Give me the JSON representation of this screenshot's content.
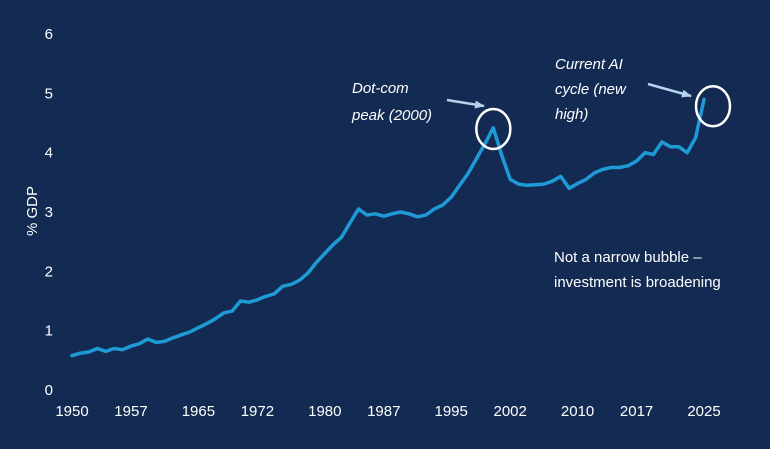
{
  "chart_data": {
    "type": "line",
    "title": "",
    "xlabel": "",
    "ylabel": "% GDP",
    "xlim": [
      1950,
      2028
    ],
    "ylim": [
      0,
      6
    ],
    "grid": false,
    "legend": "none",
    "x_ticks": [
      "1950",
      "1957",
      "1965",
      "1972",
      "1980",
      "1987",
      "1995",
      "2002",
      "2010",
      "2017",
      "2025"
    ],
    "y_ticks": [
      "0",
      "1",
      "2",
      "3",
      "4",
      "5",
      "6"
    ],
    "series": [
      {
        "color": "#1e9bd7",
        "points": [
          [
            1950,
            0.58
          ],
          [
            1951,
            0.62
          ],
          [
            1952,
            0.64
          ],
          [
            1953,
            0.7
          ],
          [
            1954,
            0.65
          ],
          [
            1955,
            0.7
          ],
          [
            1956,
            0.68
          ],
          [
            1957,
            0.74
          ],
          [
            1958,
            0.78
          ],
          [
            1959,
            0.86
          ],
          [
            1960,
            0.8
          ],
          [
            1961,
            0.82
          ],
          [
            1962,
            0.88
          ],
          [
            1963,
            0.93
          ],
          [
            1964,
            0.98
          ],
          [
            1965,
            1.05
          ],
          [
            1966,
            1.12
          ],
          [
            1967,
            1.2
          ],
          [
            1968,
            1.3
          ],
          [
            1969,
            1.33
          ],
          [
            1970,
            1.5
          ],
          [
            1971,
            1.48
          ],
          [
            1972,
            1.52
          ],
          [
            1973,
            1.58
          ],
          [
            1974,
            1.62
          ],
          [
            1975,
            1.75
          ],
          [
            1976,
            1.78
          ],
          [
            1977,
            1.85
          ],
          [
            1978,
            1.97
          ],
          [
            1979,
            2.15
          ],
          [
            1980,
            2.3
          ],
          [
            1981,
            2.45
          ],
          [
            1982,
            2.58
          ],
          [
            1983,
            2.82
          ],
          [
            1984,
            3.05
          ],
          [
            1985,
            2.95
          ],
          [
            1986,
            2.97
          ],
          [
            1987,
            2.93
          ],
          [
            1988,
            2.97
          ],
          [
            1989,
            3.0
          ],
          [
            1990,
            2.97
          ],
          [
            1991,
            2.92
          ],
          [
            1992,
            2.95
          ],
          [
            1993,
            3.05
          ],
          [
            1994,
            3.12
          ],
          [
            1995,
            3.25
          ],
          [
            1996,
            3.45
          ],
          [
            1997,
            3.65
          ],
          [
            1998,
            3.9
          ],
          [
            1999,
            4.15
          ],
          [
            2000,
            4.42
          ],
          [
            2001,
            3.95
          ],
          [
            2002,
            3.55
          ],
          [
            2003,
            3.47
          ],
          [
            2004,
            3.45
          ],
          [
            2005,
            3.46
          ],
          [
            2006,
            3.47
          ],
          [
            2007,
            3.52
          ],
          [
            2008,
            3.6
          ],
          [
            2009,
            3.4
          ],
          [
            2010,
            3.48
          ],
          [
            2011,
            3.55
          ],
          [
            2012,
            3.66
          ],
          [
            2013,
            3.72
          ],
          [
            2014,
            3.75
          ],
          [
            2015,
            3.75
          ],
          [
            2016,
            3.78
          ],
          [
            2017,
            3.86
          ],
          [
            2018,
            4.0
          ],
          [
            2019,
            3.97
          ],
          [
            2020,
            4.18
          ],
          [
            2021,
            4.1
          ],
          [
            2022,
            4.1
          ],
          [
            2023,
            4.0
          ],
          [
            2024,
            4.25
          ],
          [
            2025,
            4.9
          ]
        ]
      }
    ],
    "annotations": [
      {
        "text_lines": [
          "Dot-com",
          "peak (2000)"
        ],
        "target": [
          2000,
          4.4
        ]
      },
      {
        "text_lines": [
          "Current AI",
          "cycle (new",
          "high)"
        ],
        "target": [
          2025,
          4.85
        ]
      }
    ],
    "note_lines": [
      "Not a narrow bubble –",
      "investment is broadening"
    ],
    "colors": {
      "background": "#132b52",
      "line": "#1e9bd7",
      "text": "#ffffff",
      "arrow": "#b6d2ec"
    }
  }
}
